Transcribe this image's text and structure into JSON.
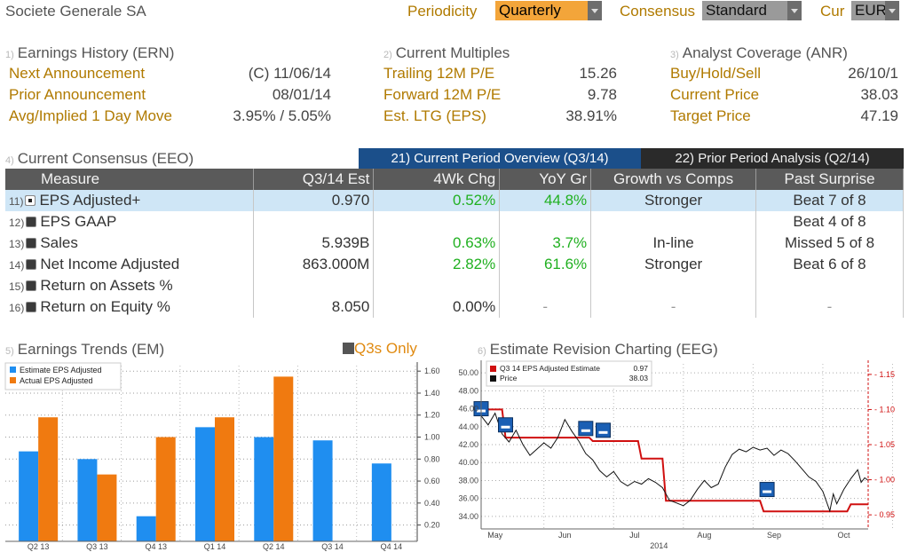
{
  "header": {
    "company": "Societe Generale SA",
    "periodicity_label": "Periodicity",
    "periodicity_value": "Quarterly",
    "consensus_label": "Consensus",
    "consensus_value": "Standard",
    "cur_label": "Cur",
    "cur_value": "EUR"
  },
  "ern": {
    "num": "1)",
    "title": "Earnings History (ERN)",
    "rows": [
      {
        "label": "Next Announcement",
        "value": "(C)  11/06/14"
      },
      {
        "label": "Prior Announcement",
        "value": "08/01/14"
      },
      {
        "label": "Avg/Implied 1 Day Move",
        "value": "3.95% / 5.05%"
      }
    ]
  },
  "multiples": {
    "num": "2)",
    "title": "Current Multiples",
    "rows": [
      {
        "label": "Trailing 12M P/E",
        "value": "15.26"
      },
      {
        "label": "Forward 12M P/E",
        "value": "9.78"
      },
      {
        "label": "Est. LTG (EPS)",
        "value": "38.91%"
      }
    ]
  },
  "anr": {
    "num": "3)",
    "title": "Analyst Coverage (ANR)",
    "rows": [
      {
        "label": "Buy/Hold/Sell",
        "value": "26/10/1"
      },
      {
        "label": "Current Price",
        "value": "38.03"
      },
      {
        "label": "Target Price",
        "value": "47.19"
      }
    ]
  },
  "consensus": {
    "num": "4)",
    "title": "Current Consensus (EEO)",
    "tab_current": "21) Current Period Overview (Q3/14)",
    "tab_prior": "22) Prior Period Analysis (Q2/14)",
    "columns": [
      "Measure",
      "Q3/14 Est",
      "4Wk Chg",
      "YoY Gr",
      "Growth vs Comps",
      "Past Surprise"
    ],
    "rows": [
      {
        "n": "11)",
        "measure": "EPS Adjusted+",
        "est": "0.970",
        "chg": "0.52%",
        "yoy": "44.8%",
        "comps": "Stronger",
        "surprise": "Beat 7 of 8"
      },
      {
        "n": "12)",
        "measure": "EPS GAAP",
        "est": "",
        "chg": "",
        "yoy": "",
        "comps": "",
        "surprise": "Beat 4 of 8"
      },
      {
        "n": "13)",
        "measure": "Sales",
        "est": "5.939B",
        "chg": "0.63%",
        "yoy": "3.7%",
        "comps": "In-line",
        "surprise": "Missed 5 of 8"
      },
      {
        "n": "14)",
        "measure": "Net Income Adjusted",
        "est": "863.000M",
        "chg": "2.82%",
        "yoy": "61.6%",
        "comps": "Stronger",
        "surprise": "Beat 6 of 8"
      },
      {
        "n": "15)",
        "measure": "Return on Assets %",
        "est": "",
        "chg": "",
        "yoy": "",
        "comps": "",
        "surprise": ""
      },
      {
        "n": "16)",
        "measure": "Return on Equity %",
        "est": "8.050",
        "chg": "0.00%",
        "yoy": "-",
        "comps": "-",
        "surprise": "-"
      }
    ]
  },
  "em": {
    "num": "5)",
    "title": "Earnings Trends (EM)",
    "toggle": "Q3s Only"
  },
  "eeg": {
    "num": "6)",
    "title": "Estimate Revision Charting (EEG)"
  },
  "chart_data": [
    {
      "type": "bar",
      "categories": [
        "Q2 13",
        "Q3 13",
        "Q4 13",
        "Q1 14",
        "Q2 14",
        "Q3 14",
        "Q4 14"
      ],
      "series": [
        {
          "name": "Estimate EPS Adjusted",
          "color": "#1f8ef0",
          "values": [
            0.87,
            0.8,
            0.28,
            1.09,
            1.0,
            0.97,
            0.76
          ]
        },
        {
          "name": "Actual EPS Adjusted",
          "color": "#f07a10",
          "values": [
            1.18,
            0.66,
            1.0,
            1.18,
            1.55,
            null,
            null
          ]
        }
      ],
      "yticks": [
        "0.20",
        "0.40",
        "0.60",
        "0.80",
        "1.00",
        "1.20",
        "1.40",
        "1.60"
      ],
      "ylim": [
        0.1,
        1.65
      ],
      "legend": "top-left"
    },
    {
      "type": "line",
      "x_labels": [
        "May",
        "Jun",
        "Jul",
        "Aug",
        "Sep",
        "Oct"
      ],
      "x_sublabel": "2014",
      "left_axis": [
        "34.00",
        "36.00",
        "38.00",
        "40.00",
        "42.00",
        "44.00",
        "46.00",
        "48.00",
        "50.00"
      ],
      "right_axis": [
        "0.95",
        "1.00",
        "1.05",
        "1.10",
        "1.15"
      ],
      "legend": [
        {
          "name": "Q3 14 EPS Adjusted Estimate",
          "value": "0.97",
          "color": "#d01010"
        },
        {
          "name": "Price",
          "value": "38.03",
          "color": "#111111"
        }
      ],
      "series": [
        {
          "name": "Q3 14 EPS Adjusted Estimate",
          "axis": "right",
          "color": "#d01010",
          "points": [
            [
              0,
              1.1
            ],
            [
              0.3,
              1.1
            ],
            [
              0.35,
              1.06
            ],
            [
              1.55,
              1.06
            ],
            [
              1.6,
              1.055
            ],
            [
              2.25,
              1.055
            ],
            [
              2.3,
              1.03
            ],
            [
              2.6,
              1.03
            ],
            [
              2.65,
              0.97
            ],
            [
              4.0,
              0.97
            ],
            [
              4.05,
              0.955
            ],
            [
              5.25,
              0.955
            ],
            [
              5.3,
              0.965
            ],
            [
              5.55,
              0.965
            ]
          ]
        },
        {
          "name": "Price",
          "axis": "left",
          "color": "#111111",
          "points": [
            [
              0,
              45.2
            ],
            [
              0.1,
              44.2
            ],
            [
              0.2,
              45.5
            ],
            [
              0.3,
              43.2
            ],
            [
              0.4,
              42.3
            ],
            [
              0.5,
              43.6
            ],
            [
              0.6,
              42.0
            ],
            [
              0.7,
              40.8
            ],
            [
              0.8,
              41.5
            ],
            [
              0.9,
              42.2
            ],
            [
              1.0,
              41.6
            ],
            [
              1.1,
              42.8
            ],
            [
              1.2,
              44.8
            ],
            [
              1.3,
              43.5
            ],
            [
              1.4,
              42.4
            ],
            [
              1.5,
              41.0
            ],
            [
              1.6,
              40.3
            ],
            [
              1.7,
              39.1
            ],
            [
              1.8,
              38.4
            ],
            [
              1.9,
              39.0
            ],
            [
              2.0,
              37.9
            ],
            [
              2.1,
              37.4
            ],
            [
              2.2,
              37.9
            ],
            [
              2.3,
              37.6
            ],
            [
              2.4,
              38.2
            ],
            [
              2.5,
              37.8
            ],
            [
              2.6,
              37.2
            ],
            [
              2.7,
              35.8
            ],
            [
              2.8,
              35.5
            ],
            [
              2.9,
              35.2
            ],
            [
              3.0,
              35.8
            ],
            [
              3.1,
              37.0
            ],
            [
              3.2,
              38.0
            ],
            [
              3.3,
              37.2
            ],
            [
              3.4,
              37.6
            ],
            [
              3.5,
              39.5
            ],
            [
              3.6,
              40.9
            ],
            [
              3.7,
              41.5
            ],
            [
              3.8,
              41.2
            ],
            [
              3.9,
              41.7
            ],
            [
              4.0,
              41.4
            ],
            [
              4.1,
              41.6
            ],
            [
              4.2,
              40.8
            ],
            [
              4.3,
              41.4
            ],
            [
              4.4,
              41.0
            ],
            [
              4.5,
              40.2
            ],
            [
              4.6,
              39.3
            ],
            [
              4.7,
              38.4
            ],
            [
              4.8,
              37.9
            ],
            [
              4.9,
              36.8
            ],
            [
              5.0,
              34.6
            ],
            [
              5.05,
              36.5
            ],
            [
              5.1,
              35.4
            ],
            [
              5.2,
              37.0
            ],
            [
              5.3,
              38.2
            ],
            [
              5.4,
              39.2
            ],
            [
              5.45,
              37.8
            ],
            [
              5.5,
              38.3
            ],
            [
              5.55,
              38.0
            ]
          ]
        }
      ],
      "markers": [
        {
          "x": 0.0,
          "y": 46.0
        },
        {
          "x": 0.35,
          "y": 44.2
        },
        {
          "x": 1.5,
          "y": 43.8
        },
        {
          "x": 1.75,
          "y": 43.6
        },
        {
          "x": 4.1,
          "y": 37.0
        }
      ]
    }
  ]
}
